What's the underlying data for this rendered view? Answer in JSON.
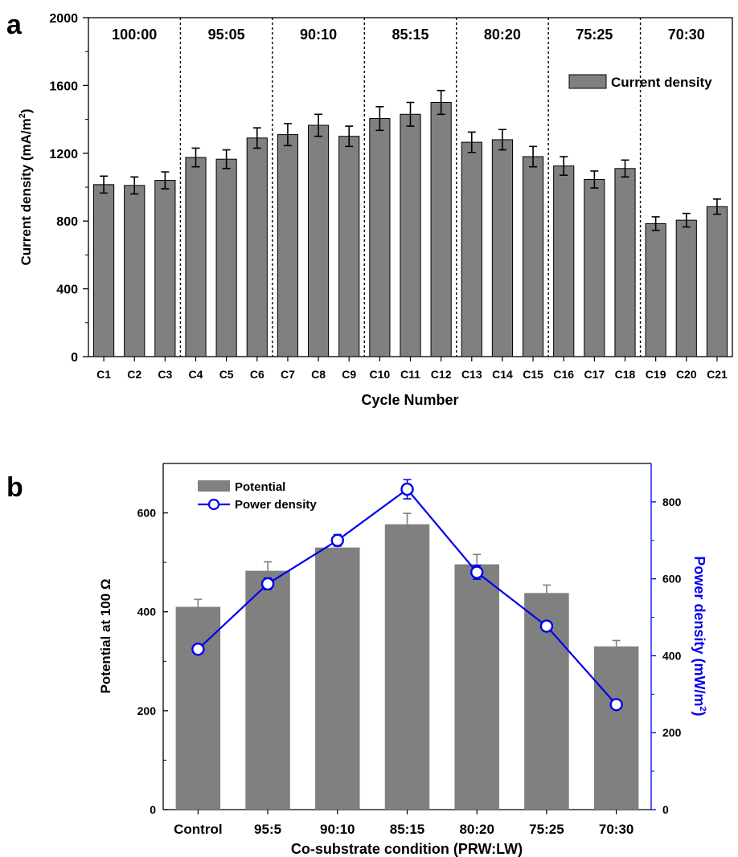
{
  "chart_data": [
    {
      "panel_label": "a",
      "type": "bar",
      "xlabel": "Cycle Number",
      "ylabel": "Current density (mA/m",
      "ylabel_sup": "2",
      "ylabel_tail": ")",
      "ylim": [
        0,
        2000
      ],
      "yticks": [
        "0",
        "400",
        "800",
        "1200",
        "1600",
        "2000"
      ],
      "categories": [
        "C1",
        "C2",
        "C3",
        "C4",
        "C5",
        "C6",
        "C7",
        "C8",
        "C9",
        "C10",
        "C11",
        "C12",
        "C13",
        "C14",
        "C15",
        "C16",
        "C17",
        "C18",
        "C19",
        "C20",
        "C21"
      ],
      "series": [
        {
          "name": "Current density",
          "color": "#808080",
          "values": [
            1015,
            1010,
            1040,
            1175,
            1165,
            1290,
            1310,
            1365,
            1300,
            1405,
            1430,
            1500,
            1265,
            1280,
            1180,
            1125,
            1045,
            1110,
            785,
            805,
            885
          ],
          "errors": [
            50,
            50,
            50,
            55,
            55,
            60,
            65,
            65,
            60,
            70,
            70,
            70,
            60,
            60,
            60,
            55,
            50,
            50,
            40,
            40,
            45
          ]
        }
      ],
      "groups": [
        {
          "label": "100:00",
          "cycles": [
            0,
            2
          ]
        },
        {
          "label": "95:05",
          "cycles": [
            3,
            5
          ]
        },
        {
          "label": "90:10",
          "cycles": [
            6,
            8
          ]
        },
        {
          "label": "85:15",
          "cycles": [
            9,
            11
          ]
        },
        {
          "label": "80:20",
          "cycles": [
            12,
            14
          ]
        },
        {
          "label": "75:25",
          "cycles": [
            15,
            17
          ]
        },
        {
          "label": "70:30",
          "cycles": [
            18,
            20
          ]
        }
      ],
      "legend_position": "top-right"
    },
    {
      "panel_label": "b",
      "type": "bar+line",
      "xlabel": "Co-substrate condition (PRW:LW)",
      "ylabel_left": "Potential at 100 Ω",
      "ylabel_right": "Power density (mW/m",
      "ylabel_right_sup": "2",
      "ylabel_right_tail": ")",
      "ylim_left": [
        0,
        700
      ],
      "ylim_right": [
        0,
        900
      ],
      "yticks_left": [
        "0",
        "200",
        "400",
        "600"
      ],
      "yticks_right": [
        "0",
        "200",
        "400",
        "600",
        "800"
      ],
      "categories": [
        "Control",
        "95:5",
        "90:10",
        "85:15",
        "80:20",
        "75:25",
        "70:30"
      ],
      "series": [
        {
          "name": "Potential",
          "type": "bar",
          "axis": "left",
          "color": "#808080",
          "values": [
            410,
            483,
            530,
            577,
            496,
            438,
            330
          ],
          "errors": [
            15,
            18,
            17,
            22,
            20,
            16,
            12
          ]
        },
        {
          "name": "Power density",
          "type": "line",
          "axis": "right",
          "color": "#0000ee",
          "values": [
            417,
            587,
            700,
            833,
            617,
            477,
            273
          ],
          "errors": [
            10,
            15,
            15,
            25,
            18,
            13,
            5
          ]
        }
      ],
      "legend_position": "top-left"
    }
  ]
}
